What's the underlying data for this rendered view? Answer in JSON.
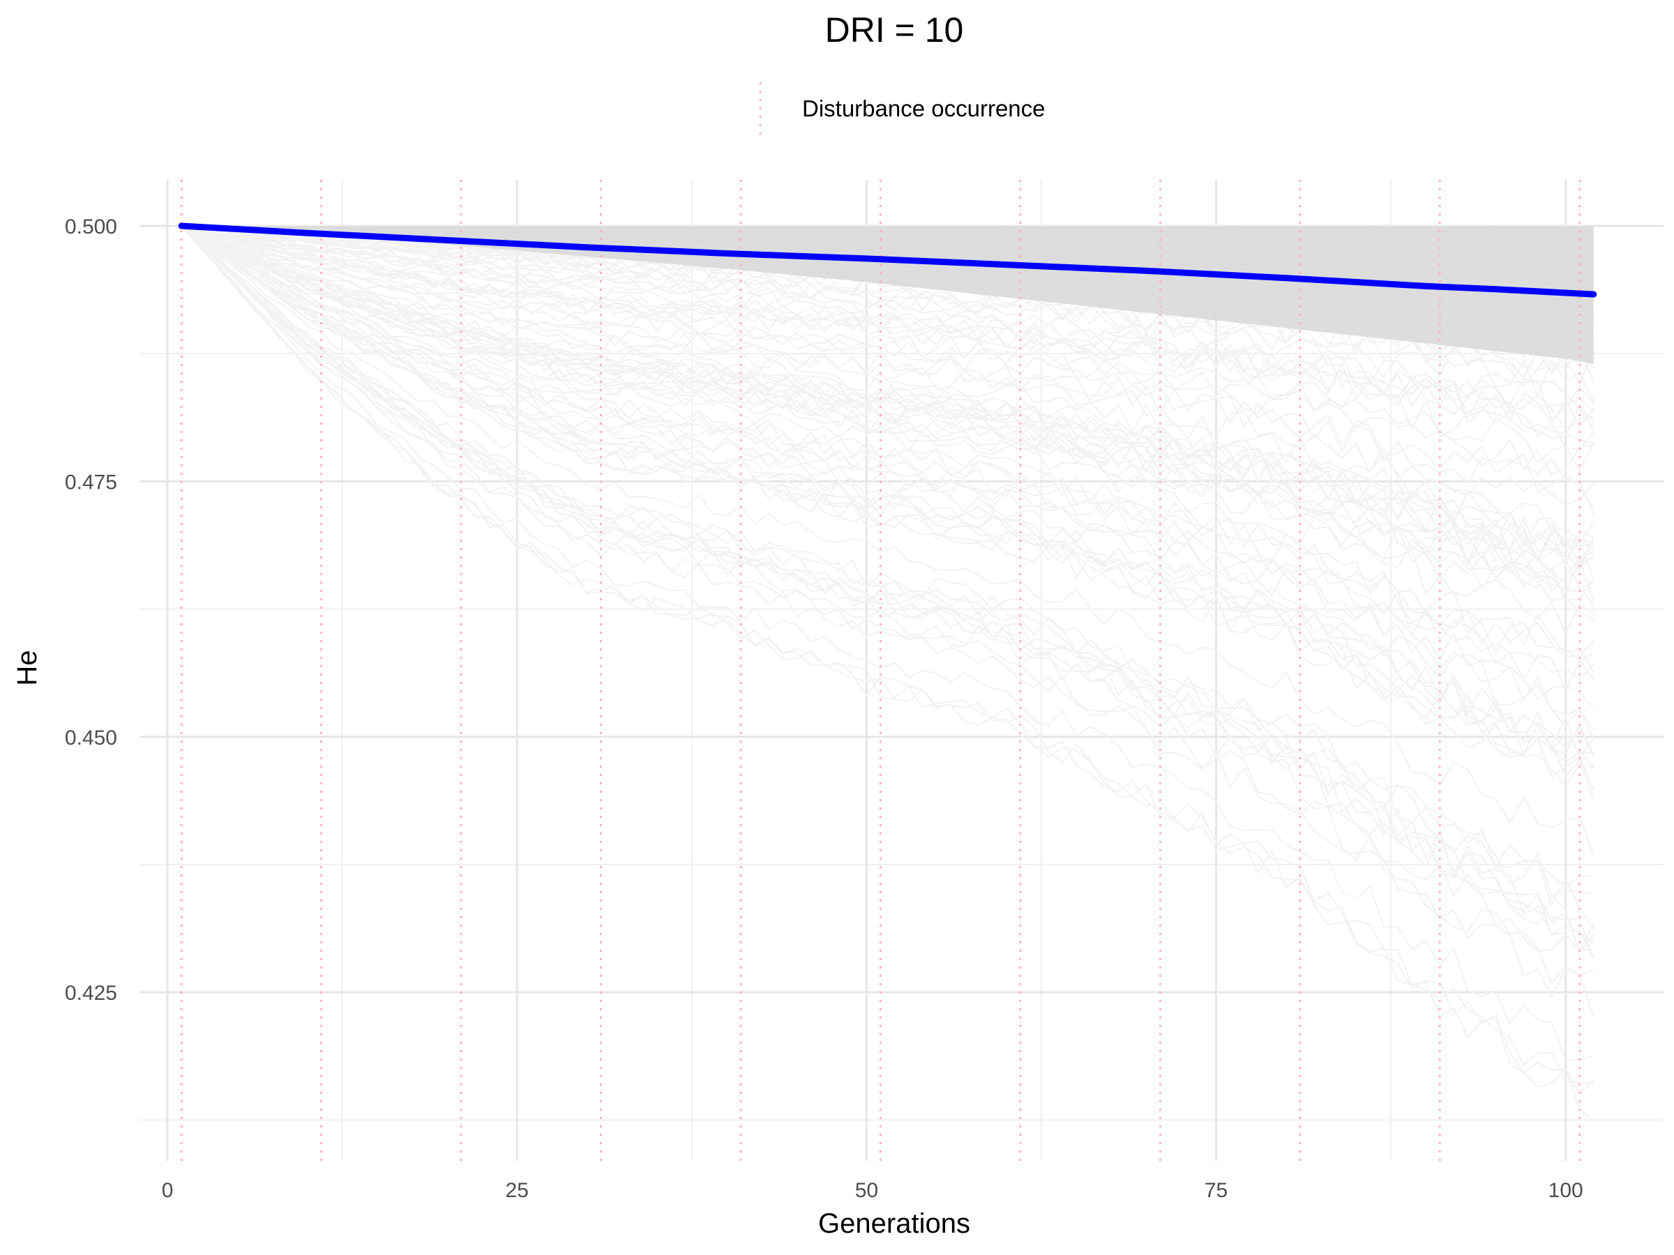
{
  "chart_data": {
    "type": "line",
    "title": "DRI = 10",
    "xlabel": "Generations",
    "ylabel": "He",
    "xlim": [
      -2,
      107
    ],
    "ylim": [
      0.4085,
      0.5045
    ],
    "x_ticks": [
      0,
      25,
      50,
      75,
      100
    ],
    "x_tick_labels": [
      "0",
      "25",
      "50",
      "75",
      "100"
    ],
    "y_ticks": [
      0.425,
      0.45,
      0.475,
      0.5
    ],
    "y_tick_labels": [
      "0.425",
      "0.450",
      "0.475",
      "0.500"
    ],
    "grid": true,
    "legend": {
      "position": "top",
      "entries": [
        {
          "label": "Disturbance occurrence",
          "color": "#ffb3b3",
          "style": "dotted"
        }
      ]
    },
    "disturbance_generations": [
      1,
      11,
      21,
      31,
      41,
      51,
      61,
      71,
      81,
      91,
      101
    ],
    "mean_series": {
      "color": "#0000ff",
      "x": [
        1,
        10,
        20,
        30,
        40,
        50,
        60,
        70,
        80,
        90,
        95,
        102
      ],
      "y": [
        0.5,
        0.4993,
        0.4986,
        0.4979,
        0.4973,
        0.4968,
        0.4962,
        0.4956,
        0.4949,
        0.4941,
        0.4938,
        0.4933
      ]
    },
    "replicate_envelope": {
      "color": "#d9d9d9",
      "x": [
        1,
        10,
        20,
        30,
        40,
        50,
        60,
        70,
        80,
        90,
        100,
        102
      ],
      "upper": [
        0.5,
        0.5,
        0.5,
        0.5,
        0.5,
        0.5,
        0.5,
        0.5,
        0.5,
        0.5,
        0.5,
        0.5
      ],
      "lower": [
        0.5,
        0.4992,
        0.4982,
        0.497,
        0.4958,
        0.4945,
        0.493,
        0.4915,
        0.49,
        0.4885,
        0.487,
        0.4865
      ]
    },
    "replicate_extremes": {
      "color": "#f2f2f2",
      "x": [
        1,
        10,
        20,
        30,
        40,
        50,
        60,
        70,
        80,
        90,
        100,
        102
      ],
      "min": [
        0.5,
        0.485,
        0.472,
        0.462,
        0.458,
        0.452,
        0.448,
        0.44,
        0.432,
        0.42,
        0.41,
        0.408
      ]
    }
  }
}
